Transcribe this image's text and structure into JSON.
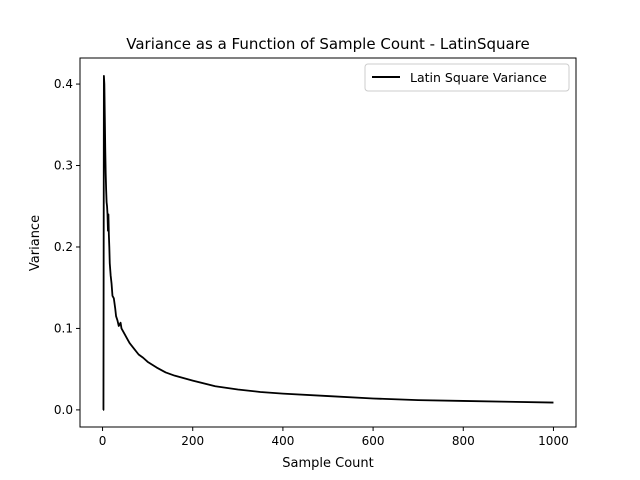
{
  "chart_data": {
    "type": "line",
    "title": "Variance as a Function of Sample Count - LatinSquare",
    "xlabel": "Sample Count",
    "ylabel": "Variance",
    "xlim": [
      -50,
      1050
    ],
    "ylim": [
      -0.021,
      0.432
    ],
    "xticks": [
      0,
      200,
      400,
      600,
      800,
      1000
    ],
    "yticks": [
      0.0,
      0.1,
      0.2,
      0.3,
      0.4
    ],
    "xtick_labels": [
      "0",
      "200",
      "400",
      "600",
      "800",
      "1000"
    ],
    "ytick_labels": [
      "0.0",
      "0.1",
      "0.2",
      "0.3",
      "0.4"
    ],
    "grid": false,
    "legend": {
      "position": "upper-right"
    },
    "series": [
      {
        "name": "Latin Square Variance",
        "color": "#000000",
        "x": [
          1,
          2,
          3,
          4,
          5,
          6,
          7,
          8,
          9,
          10,
          11,
          12,
          13,
          14,
          15,
          16,
          18,
          20,
          22,
          25,
          28,
          30,
          33,
          36,
          40,
          42,
          44,
          46,
          50,
          55,
          60,
          70,
          80,
          90,
          100,
          120,
          140,
          160,
          180,
          200,
          250,
          300,
          350,
          400,
          500,
          600,
          700,
          800,
          900,
          1000
        ],
        "values": [
          0.0,
          0.0,
          0.41,
          0.4,
          0.36,
          0.32,
          0.29,
          0.27,
          0.255,
          0.25,
          0.24,
          0.22,
          0.24,
          0.215,
          0.2,
          0.18,
          0.165,
          0.155,
          0.14,
          0.137,
          0.125,
          0.115,
          0.11,
          0.103,
          0.107,
          0.1,
          0.098,
          0.096,
          0.092,
          0.087,
          0.082,
          0.075,
          0.068,
          0.064,
          0.059,
          0.052,
          0.046,
          0.042,
          0.039,
          0.036,
          0.029,
          0.025,
          0.022,
          0.02,
          0.017,
          0.014,
          0.012,
          0.011,
          0.01,
          0.009
        ]
      }
    ]
  }
}
